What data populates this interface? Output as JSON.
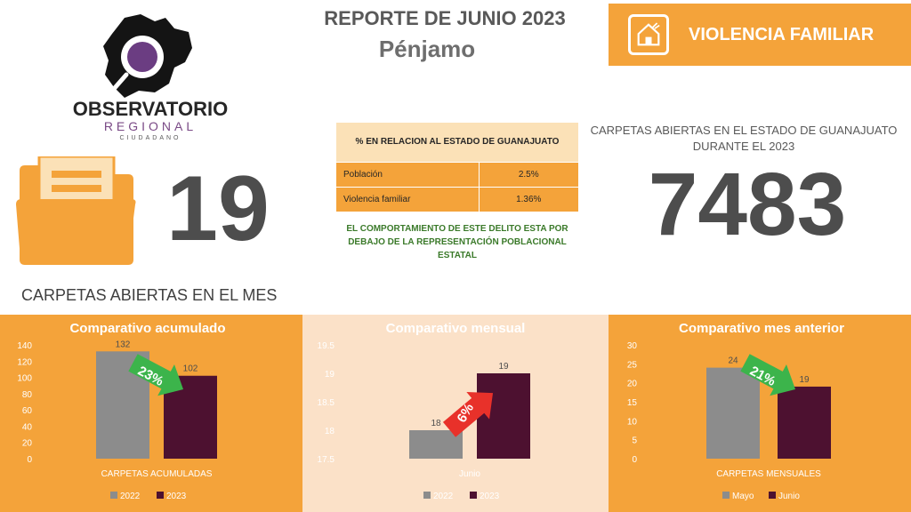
{
  "logo": {
    "name": "OBSERVATORIO",
    "line2": "REGIONAL",
    "line3": "CIUDADANO"
  },
  "report": {
    "title": "REPORTE DE  JUNIO 2023",
    "municipality": "Pénjamo"
  },
  "crime": {
    "label": "VIOLENCIA FAMILIAR",
    "icon": "house-violence-icon",
    "color": "#f4a33a"
  },
  "month": {
    "count": "19",
    "caption": "CARPETAS ABIERTAS EN EL MES",
    "icon": "folder-icon"
  },
  "state_relation": {
    "header": "% EN RELACION AL ESTADO DE GUANAJUATO",
    "rows": [
      {
        "label": "Población",
        "value": "2.5%"
      },
      {
        "label": "Violencia familiar",
        "value": "1.36%"
      }
    ],
    "note": "EL COMPORTAMIENTO DE ESTE DELITO ESTA POR  DEBAJO DE LA REPRESENTACIÓN POBLACIONAL ESTATAL"
  },
  "state": {
    "caption": "CARPETAS ABIERTAS EN EL ESTADO DE GUANAJUATO DURANTE EL 2023",
    "count": "7483"
  },
  "colors": {
    "series_prev": "#8c8c8c",
    "series_curr": "#4d1130",
    "arrow_down": "#3cb44b",
    "arrow_up": "#e8312a"
  },
  "chart_data": [
    {
      "type": "bar",
      "title": "Comparativo acumulado",
      "categories": [
        "CARPETAS ACUMULADAS"
      ],
      "series": [
        {
          "name": "2022",
          "values": [
            132
          ]
        },
        {
          "name": "2023",
          "values": [
            102
          ]
        }
      ],
      "ylim": [
        0,
        140
      ],
      "yticks": [
        0,
        20,
        40,
        60,
        80,
        100,
        120,
        140
      ],
      "change_label": "23%",
      "change_direction": "down",
      "legend": "bottom"
    },
    {
      "type": "bar",
      "title": "Comparativo mensual",
      "categories": [
        "Junio"
      ],
      "series": [
        {
          "name": "2022",
          "values": [
            18
          ]
        },
        {
          "name": "2023",
          "values": [
            19
          ]
        }
      ],
      "ylim": [
        17.5,
        19.5
      ],
      "yticks": [
        17.5,
        18,
        18.5,
        19,
        19.5
      ],
      "change_label": "6%",
      "change_direction": "up",
      "legend": "bottom"
    },
    {
      "type": "bar",
      "title": "Comparativo mes anterior",
      "categories": [
        "CARPETAS MENSUALES"
      ],
      "series": [
        {
          "name": "Mayo",
          "values": [
            24
          ]
        },
        {
          "name": "Junio",
          "values": [
            19
          ]
        }
      ],
      "ylim": [
        0,
        30
      ],
      "yticks": [
        0,
        5,
        10,
        15,
        20,
        25,
        30
      ],
      "change_label": "21%",
      "change_direction": "down",
      "legend": "bottom"
    }
  ]
}
